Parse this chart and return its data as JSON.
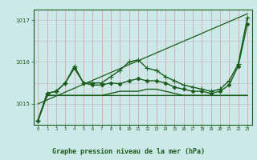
{
  "title": "Graphe pression niveau de la mer (hPa)",
  "bg_color": "#cce8e8",
  "plot_bg": "#cce8e8",
  "bottom_bg": "#d4eecc",
  "line_color": "#1a5c1a",
  "vgrid_color": "#dd9999",
  "hgrid_color": "#bbbbbb",
  "x_ticks": [
    0,
    1,
    2,
    3,
    4,
    5,
    6,
    7,
    8,
    9,
    10,
    11,
    12,
    13,
    14,
    15,
    16,
    17,
    18,
    19,
    20,
    21,
    22,
    23
  ],
  "xlim": [
    -0.5,
    23.5
  ],
  "ylim": [
    1014.5,
    1017.25
  ],
  "yticks": [
    1015,
    1016,
    1017
  ],
  "ytick_labels": [
    "1015",
    "1016",
    "1017"
  ],
  "series": [
    {
      "y": [
        1014.6,
        1015.2,
        1015.2,
        1015.2,
        1015.2,
        1015.2,
        1015.2,
        1015.2,
        1015.2,
        1015.2,
        1015.2,
        1015.2,
        1015.2,
        1015.2,
        1015.2,
        1015.2,
        1015.2,
        1015.2,
        1015.2,
        1015.2,
        1015.2,
        1015.2,
        1015.2,
        1015.2
      ],
      "marker": null,
      "linewidth": 1.0
    },
    {
      "y": [
        1014.6,
        1015.2,
        1015.2,
        1015.2,
        1015.2,
        1015.2,
        1015.2,
        1015.2,
        1015.25,
        1015.3,
        1015.3,
        1015.3,
        1015.35,
        1015.35,
        1015.3,
        1015.25,
        1015.2,
        1015.2,
        1015.2,
        1015.2,
        1015.2,
        1015.2,
        1015.2,
        1015.2
      ],
      "marker": null,
      "linewidth": 1.0
    },
    {
      "y": [
        1014.6,
        1015.25,
        1015.3,
        1015.5,
        1015.85,
        1015.5,
        1015.45,
        1015.45,
        1015.5,
        1015.48,
        1015.55,
        1015.6,
        1015.55,
        1015.55,
        1015.5,
        1015.4,
        1015.35,
        1015.3,
        1015.3,
        1015.25,
        1015.3,
        1015.45,
        1015.9,
        1016.9
      ],
      "marker": "D",
      "markersize": 2.5,
      "linewidth": 1.0
    },
    {
      "y": [
        1014.6,
        1015.25,
        1015.3,
        1015.5,
        1015.9,
        1015.5,
        1015.5,
        1015.5,
        1015.65,
        1015.8,
        1016.0,
        1016.05,
        1015.85,
        1015.8,
        1015.65,
        1015.55,
        1015.45,
        1015.4,
        1015.35,
        1015.3,
        1015.35,
        1015.55,
        1015.95,
        1017.05
      ],
      "marker": "+",
      "markersize": 4,
      "linewidth": 1.0
    }
  ],
  "trend_line": {
    "x": [
      0,
      23
    ],
    "y": [
      1015.0,
      1017.15
    ],
    "linewidth": 0.9
  }
}
